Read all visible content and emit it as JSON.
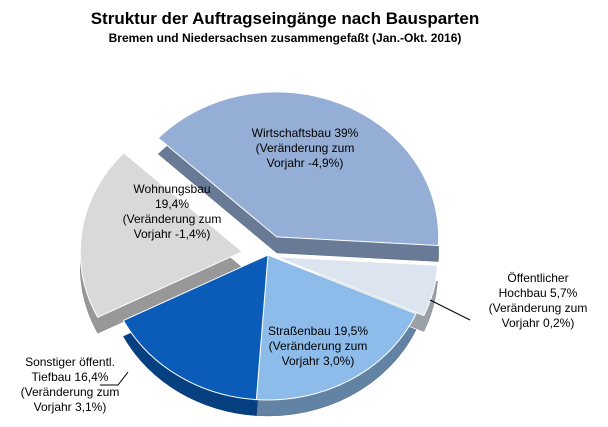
{
  "chart_data": {
    "type": "pie",
    "title": "Struktur der Auftragseingänge nach Bausparten",
    "subtitle": "Bremen und Niedersachsen zusammengefaßt (Jan.-Okt. 2016)",
    "categories": [
      "Wirtschaftsbau",
      "Öffentlicher Hochbau",
      "Straßenbau",
      "Sonstiger öffentl. Tiefbau",
      "Wohnungsbau"
    ],
    "values": [
      39,
      5.7,
      19.5,
      16.4,
      19.4
    ],
    "colors": [
      "#95aed6",
      "#dce4ef",
      "#8dbbea",
      "#0a5cb8",
      "#d9d9d9"
    ],
    "labels": [
      [
        "Wirtschaftsbau 39%",
        "(Veränderung zum",
        "Vorjahr -4,9%)"
      ],
      [
        "Öffentlicher",
        "Hochbau 5,7%",
        "(Veränderung zum",
        "Vorjahr 0,2%)"
      ],
      [
        "Straßenbau 19,5%",
        "(Veränderung zum",
        "Vorjahr 3,0%)"
      ],
      [
        "Sonstiger öffentl.",
        "Tiefbau 16,4%",
        "(Veränderung zum",
        "Vorjahr 3,1%)"
      ],
      [
        "Wohnungsbau",
        "19,4%",
        "(Veränderung zum",
        "Vorjahr -1,4%)"
      ]
    ]
  }
}
